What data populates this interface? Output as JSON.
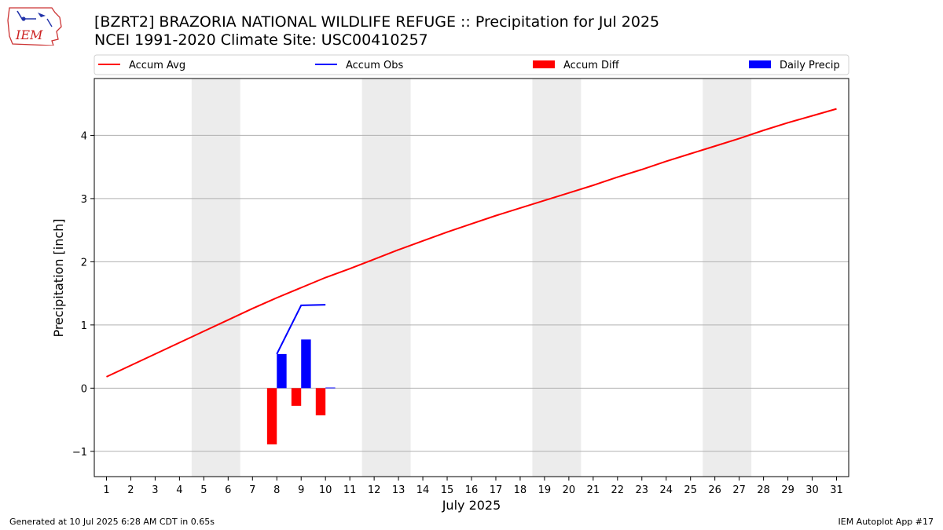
{
  "logo": {
    "text": "IEM"
  },
  "header": {
    "title_line1": "[BZRT2] BRAZORIA NATIONAL WILDLIFE REFUGE :: Precipitation for Jul 2025",
    "title_line2": "NCEI 1991-2020 Climate Site: USC00410257"
  },
  "footer": {
    "left": "Generated at 10 Jul 2025 6:28 AM CDT in 0.65s",
    "right": "IEM Autoplot App #17"
  },
  "chart_data": {
    "type": "bar",
    "xlabel": "July 2025",
    "ylabel": "Precipitation [inch]",
    "ylim": [
      -1.4,
      4.9
    ],
    "xlim": [
      0.5,
      31.5
    ],
    "yticks": [
      -1,
      0,
      1,
      2,
      3,
      4
    ],
    "ytick_labels": [
      "−1",
      "0",
      "1",
      "2",
      "3",
      "4"
    ],
    "x": [
      1,
      2,
      3,
      4,
      5,
      6,
      7,
      8,
      9,
      10,
      11,
      12,
      13,
      14,
      15,
      16,
      17,
      18,
      19,
      20,
      21,
      22,
      23,
      24,
      25,
      26,
      27,
      28,
      29,
      30,
      31
    ],
    "grid": "horizontal",
    "weekend_bands": [
      [
        5,
        6
      ],
      [
        12,
        13
      ],
      [
        19,
        20
      ],
      [
        26,
        27
      ]
    ],
    "legend": {
      "placement": "top",
      "entries": [
        {
          "label": "Accum Avg",
          "kind": "line",
          "color": "#ff0000"
        },
        {
          "label": "Accum Obs",
          "kind": "line",
          "color": "#0000ff"
        },
        {
          "label": "Accum Diff",
          "kind": "bar",
          "color": "#ff0000"
        },
        {
          "label": "Daily Precip",
          "kind": "bar",
          "color": "#0000ff"
        }
      ]
    },
    "series": [
      {
        "name": "Accum Avg",
        "kind": "line",
        "color": "#ff0000",
        "x": [
          1,
          2,
          3,
          4,
          5,
          6,
          7,
          8,
          9,
          10,
          11,
          12,
          13,
          14,
          15,
          16,
          17,
          18,
          19,
          20,
          21,
          22,
          23,
          24,
          25,
          26,
          27,
          28,
          29,
          30,
          31
        ],
        "values": [
          0.18,
          0.36,
          0.54,
          0.72,
          0.9,
          1.08,
          1.26,
          1.43,
          1.59,
          1.75,
          1.89,
          2.04,
          2.19,
          2.33,
          2.47,
          2.6,
          2.73,
          2.85,
          2.97,
          3.09,
          3.21,
          3.34,
          3.46,
          3.59,
          3.71,
          3.83,
          3.95,
          4.08,
          4.2,
          4.31,
          4.42
        ]
      },
      {
        "name": "Accum Obs",
        "kind": "line",
        "color": "#0000ff",
        "x": [
          8,
          9,
          10
        ],
        "values": [
          0.54,
          1.31,
          1.32
        ]
      },
      {
        "name": "Accum Diff",
        "kind": "bar",
        "color": "#ff0000",
        "x": [
          8,
          9,
          10
        ],
        "values": [
          -0.89,
          -0.28,
          -0.43
        ]
      },
      {
        "name": "Daily Precip",
        "kind": "bar",
        "color": "#0000ff",
        "x": [
          8,
          9,
          10
        ],
        "values": [
          0.54,
          0.77,
          0.01
        ]
      }
    ]
  }
}
